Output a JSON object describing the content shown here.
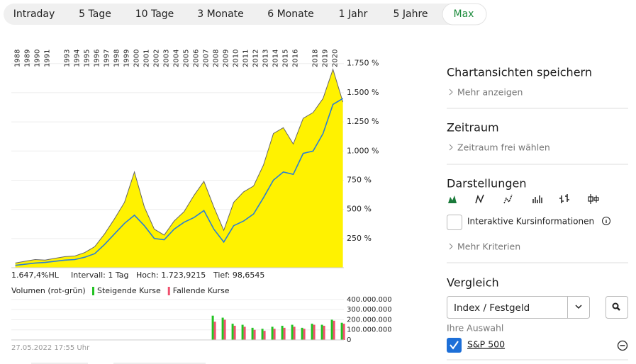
{
  "tabs": [
    "Intraday",
    "5 Tage",
    "10 Tage",
    "3 Monate",
    "6 Monate",
    "1 Jahr",
    "5 Jahre",
    "Max"
  ],
  "active_tab": 7,
  "chart_data": [
    {
      "type": "line",
      "x": [
        1988,
        1989,
        1990,
        1991,
        1992,
        1993,
        1994,
        1995,
        1996,
        1997,
        1998,
        1999,
        2000,
        2001,
        2002,
        2003,
        2004,
        2005,
        2006,
        2007,
        2008,
        2009,
        2010,
        2011,
        2012,
        2013,
        2014,
        2015,
        2016,
        2017,
        2018,
        2019,
        2020,
        2021
      ],
      "series": [
        {
          "color": "#666666",
          "fill": "#fff200",
          "values": [
            40,
            55,
            70,
            65,
            80,
            95,
            100,
            130,
            180,
            290,
            420,
            560,
            820,
            520,
            330,
            280,
            400,
            480,
            620,
            740,
            520,
            320,
            560,
            650,
            700,
            880,
            1150,
            1200,
            1060,
            1280,
            1330,
            1450,
            1700,
            1420
          ]
        },
        {
          "name": "S&P 500",
          "color": "#2a7fd4",
          "values": [
            20,
            30,
            40,
            45,
            55,
            65,
            70,
            90,
            120,
            200,
            290,
            380,
            450,
            360,
            250,
            240,
            330,
            390,
            430,
            490,
            330,
            220,
            360,
            400,
            460,
            600,
            750,
            820,
            800,
            980,
            1000,
            1150,
            1400,
            1450
          ]
        }
      ],
      "xlim": [
        1987.6,
        2021.1
      ],
      "xticks": [
        1988,
        1989,
        1990,
        1991,
        1993,
        1994,
        1995,
        1996,
        1997,
        1998,
        1999,
        2000,
        2001,
        2002,
        2003,
        2004,
        2005,
        2006,
        2007,
        2008,
        2009,
        2010,
        2011,
        2012,
        2013,
        2014,
        2015,
        2016,
        2018,
        2019,
        2020
      ],
      "ylim": [
        0,
        1900
      ],
      "yticks": [
        {
          "value": 250,
          "label": "250 %"
        },
        {
          "value": 500,
          "label": "500 %"
        },
        {
          "value": 750,
          "label": "750 %"
        },
        {
          "value": 1000,
          "label": "1.000 %"
        },
        {
          "value": 1250,
          "label": "1.250 %"
        },
        {
          "value": 1500,
          "label": "1.500 %"
        },
        {
          "value": 1750,
          "label": "1.750 %"
        }
      ],
      "grid": true
    },
    {
      "type": "bar",
      "title": "Volumen (rot-grün)",
      "x": [
        2008,
        2009,
        2010,
        2011,
        2012,
        2013,
        2014,
        2015,
        2016,
        2017,
        2018,
        2019,
        2020,
        2021
      ],
      "series": [
        {
          "name": "Steigende Kurse",
          "color": "#22c322",
          "values": [
            240000000,
            220000000,
            160000000,
            150000000,
            120000000,
            110000000,
            130000000,
            140000000,
            150000000,
            120000000,
            160000000,
            150000000,
            200000000,
            170000000
          ]
        },
        {
          "name": "Fallende Kurse",
          "color": "#f0506e",
          "values": [
            180000000,
            200000000,
            140000000,
            130000000,
            100000000,
            90000000,
            110000000,
            120000000,
            130000000,
            110000000,
            150000000,
            140000000,
            190000000,
            160000000
          ]
        }
      ],
      "xlim": [
        1987.6,
        2021.1
      ],
      "ylim": [
        0,
        420000000
      ],
      "yticks": [
        0,
        {
          "value": 100000000,
          "label": "100.000.000"
        },
        {
          "value": 200000000,
          "label": "200.000.000"
        },
        {
          "value": 300000000,
          "label": "300.000.000"
        },
        {
          "value": 400000000,
          "label": "400.000.000"
        }
      ],
      "grid": true
    }
  ],
  "chart_info": {
    "change": "1.647,4%HL",
    "interval": "Intervall: 1 Tag",
    "high": "Hoch: 1.723,9215",
    "low": "Tief: 98,6545",
    "timestamp": "27.05.2022 17:55 Uhr"
  },
  "sidebar": {
    "save": {
      "title": "Chartansichten speichern",
      "link": "Mehr anzeigen"
    },
    "period": {
      "title": "Zeitraum",
      "link": "Zeitraum frei wählen"
    },
    "display": {
      "title": "Darstellungen",
      "checkbox": "Interaktive Kursinformationen",
      "link": "Mehr Kriterien"
    },
    "compare": {
      "title": "Vergleich",
      "select": "Index / Festgeld",
      "selection_label": "Ihre Auswahl",
      "selection": "S&P 500"
    }
  }
}
